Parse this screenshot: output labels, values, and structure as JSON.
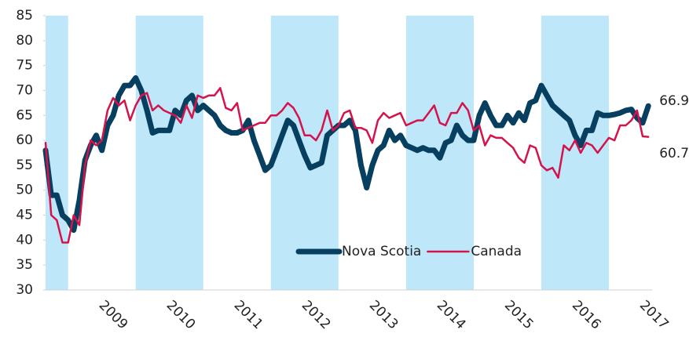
{
  "chart_data": {
    "type": "line",
    "categories": [
      null,
      null,
      null,
      null,
      null,
      null,
      null,
      null,
      null,
      null,
      null,
      null,
      "2009",
      null,
      null,
      null,
      null,
      null,
      null,
      null,
      null,
      null,
      null,
      null,
      "2010",
      null,
      null,
      null,
      null,
      null,
      null,
      null,
      null,
      null,
      null,
      null,
      "2011",
      null,
      null,
      null,
      null,
      null,
      null,
      null,
      null,
      null,
      null,
      null,
      "2012",
      null,
      null,
      null,
      null,
      null,
      null,
      null,
      null,
      null,
      null,
      null,
      "2013",
      null,
      null,
      null,
      null,
      null,
      null,
      null,
      null,
      null,
      null,
      null,
      "2014",
      null,
      null,
      null,
      null,
      null,
      null,
      null,
      null,
      null,
      null,
      null,
      "2015",
      null,
      null,
      null,
      null,
      null,
      null,
      null,
      null,
      null,
      null,
      null,
      "2016",
      null,
      null,
      null,
      null,
      null,
      null,
      null,
      null,
      null,
      null,
      null,
      "2017"
    ],
    "series": [
      {
        "name": "Nova Scotia",
        "color": "#063f5f",
        "values": [
          58,
          49,
          49,
          45,
          44,
          42,
          48,
          56,
          59,
          61,
          58,
          63,
          65,
          69,
          71,
          71,
          72.5,
          70,
          66,
          61.5,
          62,
          62,
          62,
          66,
          65,
          68,
          69,
          66,
          67,
          66,
          65,
          63,
          62,
          61.5,
          61.5,
          62,
          64,
          60,
          57,
          54,
          55,
          58,
          61,
          64,
          63,
          60,
          57,
          54.5,
          55,
          55.5,
          61,
          62,
          63,
          63,
          64,
          62,
          55,
          50.5,
          55,
          58,
          59,
          62,
          60,
          61,
          59,
          58.5,
          58,
          58.5,
          58,
          58,
          56.5,
          59.5,
          60,
          63,
          61,
          60,
          60,
          65,
          67.5,
          65,
          63,
          63,
          65,
          63.5,
          65.5,
          64,
          67.5,
          68,
          71,
          69,
          67,
          66,
          65,
          64,
          61,
          59,
          62,
          62,
          65.5,
          65,
          65,
          65.2,
          65.5,
          66,
          66.2,
          64.5,
          63.5,
          66.9,
          null
        ]
      },
      {
        "name": "Canada",
        "color": "#d5134b",
        "values": [
          59.5,
          45,
          44,
          39.5,
          39.5,
          45,
          43,
          55,
          60,
          59,
          60,
          66,
          68.5,
          67,
          68,
          64,
          67,
          69,
          69.5,
          66,
          67,
          66,
          65.5,
          65,
          63.5,
          67,
          64.5,
          69,
          68.5,
          69,
          69,
          70.5,
          66.5,
          66,
          67.5,
          62,
          62.5,
          63,
          63.5,
          63.5,
          65,
          65,
          66,
          67.5,
          66.5,
          64.5,
          61,
          61,
          60,
          62,
          66,
          62,
          63,
          65.5,
          66,
          62.5,
          62.5,
          62,
          59.5,
          64,
          65.5,
          64.5,
          65,
          65.5,
          63,
          63.5,
          64,
          64,
          65.5,
          67,
          63.5,
          63,
          65.5,
          65.5,
          67.5,
          66,
          62,
          63,
          59,
          61,
          60.5,
          60.5,
          59.5,
          58.5,
          56.5,
          55.5,
          59,
          58.5,
          55,
          54,
          54.5,
          52.5,
          59,
          58,
          60,
          57.5,
          59.5,
          59,
          57.5,
          59,
          60.5,
          60,
          63,
          63,
          64,
          66,
          60.8,
          60.7,
          null
        ]
      }
    ],
    "ylim": [
      30,
      85
    ],
    "yticks": [
      30,
      35,
      40,
      45,
      50,
      55,
      60,
      65,
      70,
      75,
      80,
      85
    ],
    "grid": false,
    "legend": "bottom"
  }
}
